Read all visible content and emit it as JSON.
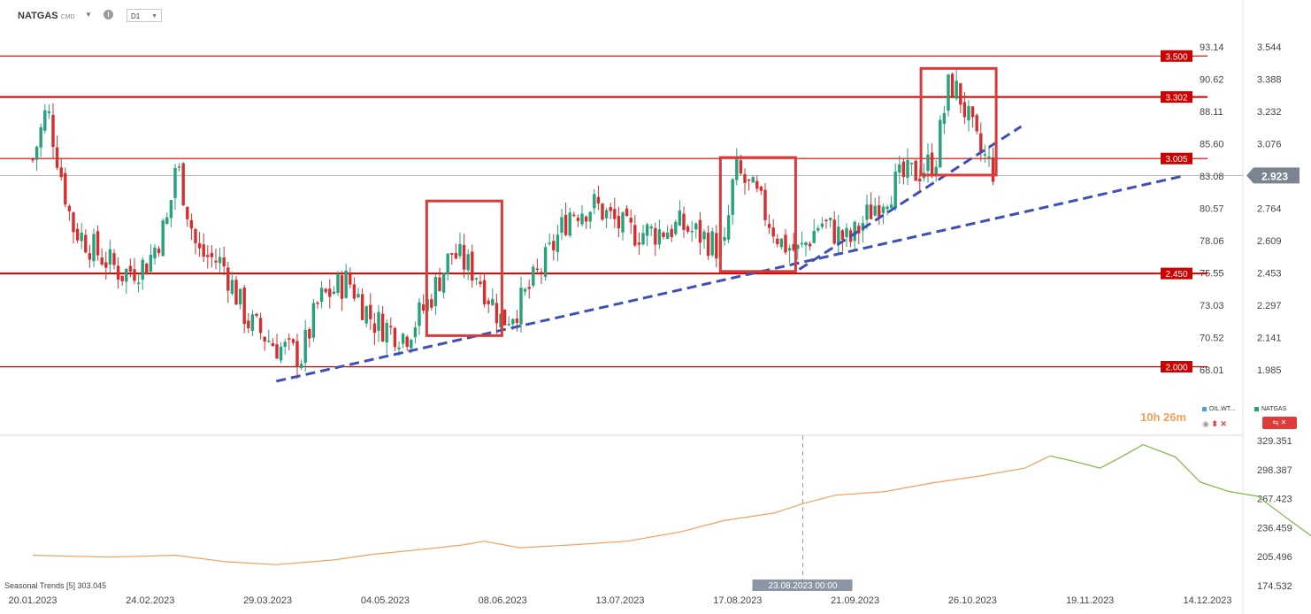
{
  "header": {
    "symbol": "NATGAS",
    "symbol_suffix": "CMD",
    "timeframe": "D1",
    "info_glyph": "i",
    "dropdown_caret": "▼"
  },
  "timer": "10h 26m",
  "compare_legend": {
    "left": "OIL.WT...",
    "right": "NATGAS"
  },
  "compare_controls": "⬍ ✕",
  "colors": {
    "up": "#26a17b",
    "down": "#d32f2f",
    "level": "#cc0000",
    "trend": "#3f4fb5",
    "seasonal": "#f2a05a",
    "seasonal_late": "#7cb342",
    "price_tag": "#7a8590"
  },
  "seasonal_label": "Seasonal   Trends  [5]  303.045",
  "chart_data": [
    {
      "type": "candlestick",
      "ylim_right": [
        1.9,
        3.62
      ],
      "left_axis_ticks": [
        "93.14",
        "90.62",
        "88.11",
        "85.60",
        "83.08",
        "80.57",
        "78.06",
        "75.55",
        "73.03",
        "70.52",
        "68.01"
      ],
      "right_axis_ticks": [
        "3.544",
        "3.388",
        "3.232",
        "3.076",
        "2.920",
        "2.764",
        "2.609",
        "2.453",
        "2.297",
        "2.141",
        "1.985"
      ],
      "levels": [
        {
          "label": "3.500",
          "value": 3.5
        },
        {
          "label": "3.302",
          "value": 3.302
        },
        {
          "label": "3.005",
          "value": 3.005
        },
        {
          "label": "2.450",
          "value": 2.45
        },
        {
          "label": "2.000",
          "value": 2.0
        }
      ],
      "last_price": {
        "label": "2.923",
        "value": 2.923
      },
      "trendlines": [
        {
          "from": [
            "2023-03-29",
            1.93
          ],
          "to": [
            "2023-12-07",
            2.92
          ]
        },
        {
          "from": [
            "2023-08-22",
            2.47
          ],
          "to": [
            "2023-10-23",
            3.16
          ]
        }
      ],
      "highlight_boxes": [
        {
          "from": "2023-05-10",
          "to": "2023-05-31",
          "high": 2.8,
          "low": 2.15
        },
        {
          "from": "2023-07-31",
          "to": "2023-08-21",
          "high": 3.01,
          "low": 2.46
        },
        {
          "from": "2023-09-25",
          "to": "2023-10-16",
          "high": 3.44,
          "low": 2.925
        }
      ],
      "price_path": [
        [
          "2023-01-20",
          3.0
        ],
        [
          "2023-01-24",
          3.25
        ],
        [
          "2023-01-31",
          2.68
        ],
        [
          "2023-02-07",
          2.55
        ],
        [
          "2023-02-14",
          2.45
        ],
        [
          "2023-02-21",
          2.5
        ],
        [
          "2023-02-27",
          2.72
        ],
        [
          "2023-03-01",
          3.0
        ],
        [
          "2023-03-07",
          2.55
        ],
        [
          "2023-03-14",
          2.5
        ],
        [
          "2023-03-21",
          2.22
        ],
        [
          "2023-03-29",
          2.1
        ],
        [
          "2023-04-05",
          2.05
        ],
        [
          "2023-04-10",
          2.32
        ],
        [
          "2023-04-18",
          2.42
        ],
        [
          "2023-04-25",
          2.22
        ],
        [
          "2023-05-04",
          2.15
        ],
        [
          "2023-05-10",
          2.3
        ],
        [
          "2023-05-17",
          2.55
        ],
        [
          "2023-05-24",
          2.45
        ],
        [
          "2023-05-31",
          2.22
        ],
        [
          "2023-06-05",
          2.3
        ],
        [
          "2023-06-12",
          2.5
        ],
        [
          "2023-06-19",
          2.75
        ],
        [
          "2023-06-26",
          2.78
        ],
        [
          "2023-07-05",
          2.65
        ],
        [
          "2023-07-13",
          2.65
        ],
        [
          "2023-07-20",
          2.68
        ],
        [
          "2023-07-27",
          2.62
        ],
        [
          "2023-08-01",
          2.55
        ],
        [
          "2023-08-04",
          2.95
        ],
        [
          "2023-08-10",
          2.82
        ],
        [
          "2023-08-17",
          2.6
        ],
        [
          "2023-08-22",
          2.55
        ],
        [
          "2023-08-28",
          2.7
        ],
        [
          "2023-09-05",
          2.6
        ],
        [
          "2023-09-12",
          2.78
        ],
        [
          "2023-09-19",
          2.9
        ],
        [
          "2023-09-25",
          2.95
        ],
        [
          "2023-09-29",
          3.0
        ],
        [
          "2023-10-03",
          3.38
        ],
        [
          "2023-10-06",
          3.3
        ],
        [
          "2023-10-11",
          3.05
        ],
        [
          "2023-10-16",
          2.93
        ]
      ]
    },
    {
      "type": "line",
      "series": [
        {
          "name": "Seasonal Trends [5]",
          "last_value": 303.045
        }
      ],
      "y_axis_ticks": [
        "329.351",
        "298.387",
        "267.423",
        "236.459",
        "205.496",
        "174.532"
      ],
      "ylim": [
        174.532,
        334.5
      ],
      "x_axis_ticks": [
        "20.01.2023",
        "24.02.2023",
        "29.03.2023",
        "04.05.2023",
        "08.06.2023",
        "13.07.2023",
        "17.08.2023",
        "21.09.2023",
        "26.10.2023",
        "19.11.2023",
        "14.12.2023"
      ],
      "cursor_label": "23.08.2023 00:00",
      "points": [
        [
          "2023-01-20",
          207
        ],
        [
          "2023-02-10",
          205
        ],
        [
          "2023-03-01",
          207
        ],
        [
          "2023-03-15",
          200
        ],
        [
          "2023-03-29",
          197
        ],
        [
          "2023-04-14",
          202
        ],
        [
          "2023-04-25",
          208
        ],
        [
          "2023-05-08",
          213
        ],
        [
          "2023-05-20",
          218
        ],
        [
          "2023-05-26",
          222
        ],
        [
          "2023-06-05",
          215
        ],
        [
          "2023-06-19",
          218
        ],
        [
          "2023-07-05",
          222
        ],
        [
          "2023-07-20",
          232
        ],
        [
          "2023-08-01",
          244
        ],
        [
          "2023-08-15",
          252
        ],
        [
          "2023-08-23",
          262
        ],
        [
          "2023-09-01",
          271
        ],
        [
          "2023-09-15",
          275
        ],
        [
          "2023-09-28",
          284
        ],
        [
          "2023-10-12",
          292
        ],
        [
          "2023-10-24",
          300
        ],
        [
          "2023-10-31",
          313
        ],
        [
          "2023-11-07",
          307
        ],
        [
          "2023-11-14",
          300
        ],
        [
          "2023-11-19",
          310
        ],
        [
          "2023-11-26",
          325
        ],
        [
          "2023-12-05",
          312
        ],
        [
          "2023-12-12",
          285
        ],
        [
          "2023-12-20",
          275
        ],
        [
          "2023-12-28",
          270
        ],
        [
          "2024-01-05",
          247
        ],
        [
          "2024-01-14",
          222
        ],
        [
          "2024-01-20",
          222
        ]
      ]
    }
  ]
}
